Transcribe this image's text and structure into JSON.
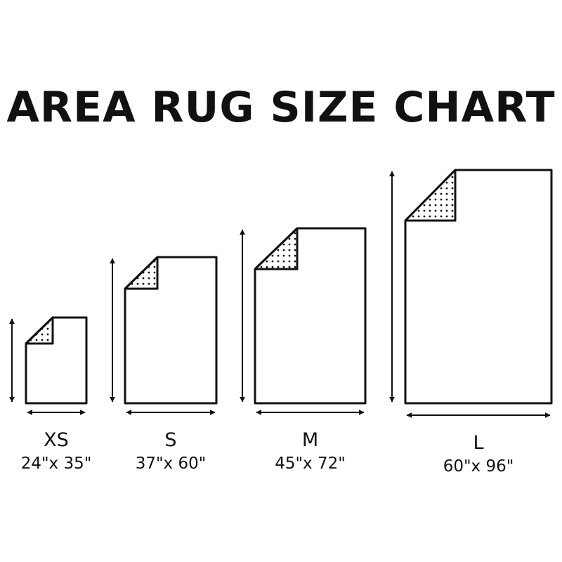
{
  "title": "AREA RUG SIZE CHART",
  "colors": {
    "line": "#111111",
    "background": "#ffffff"
  },
  "sizes": [
    {
      "label": "XS",
      "dimensions": "24\"x 35\""
    },
    {
      "label": "S",
      "dimensions": "37\"x 60\""
    },
    {
      "label": "M",
      "dimensions": "45\"x 72\""
    },
    {
      "label": "L",
      "dimensions": "60\"x 96\""
    }
  ]
}
